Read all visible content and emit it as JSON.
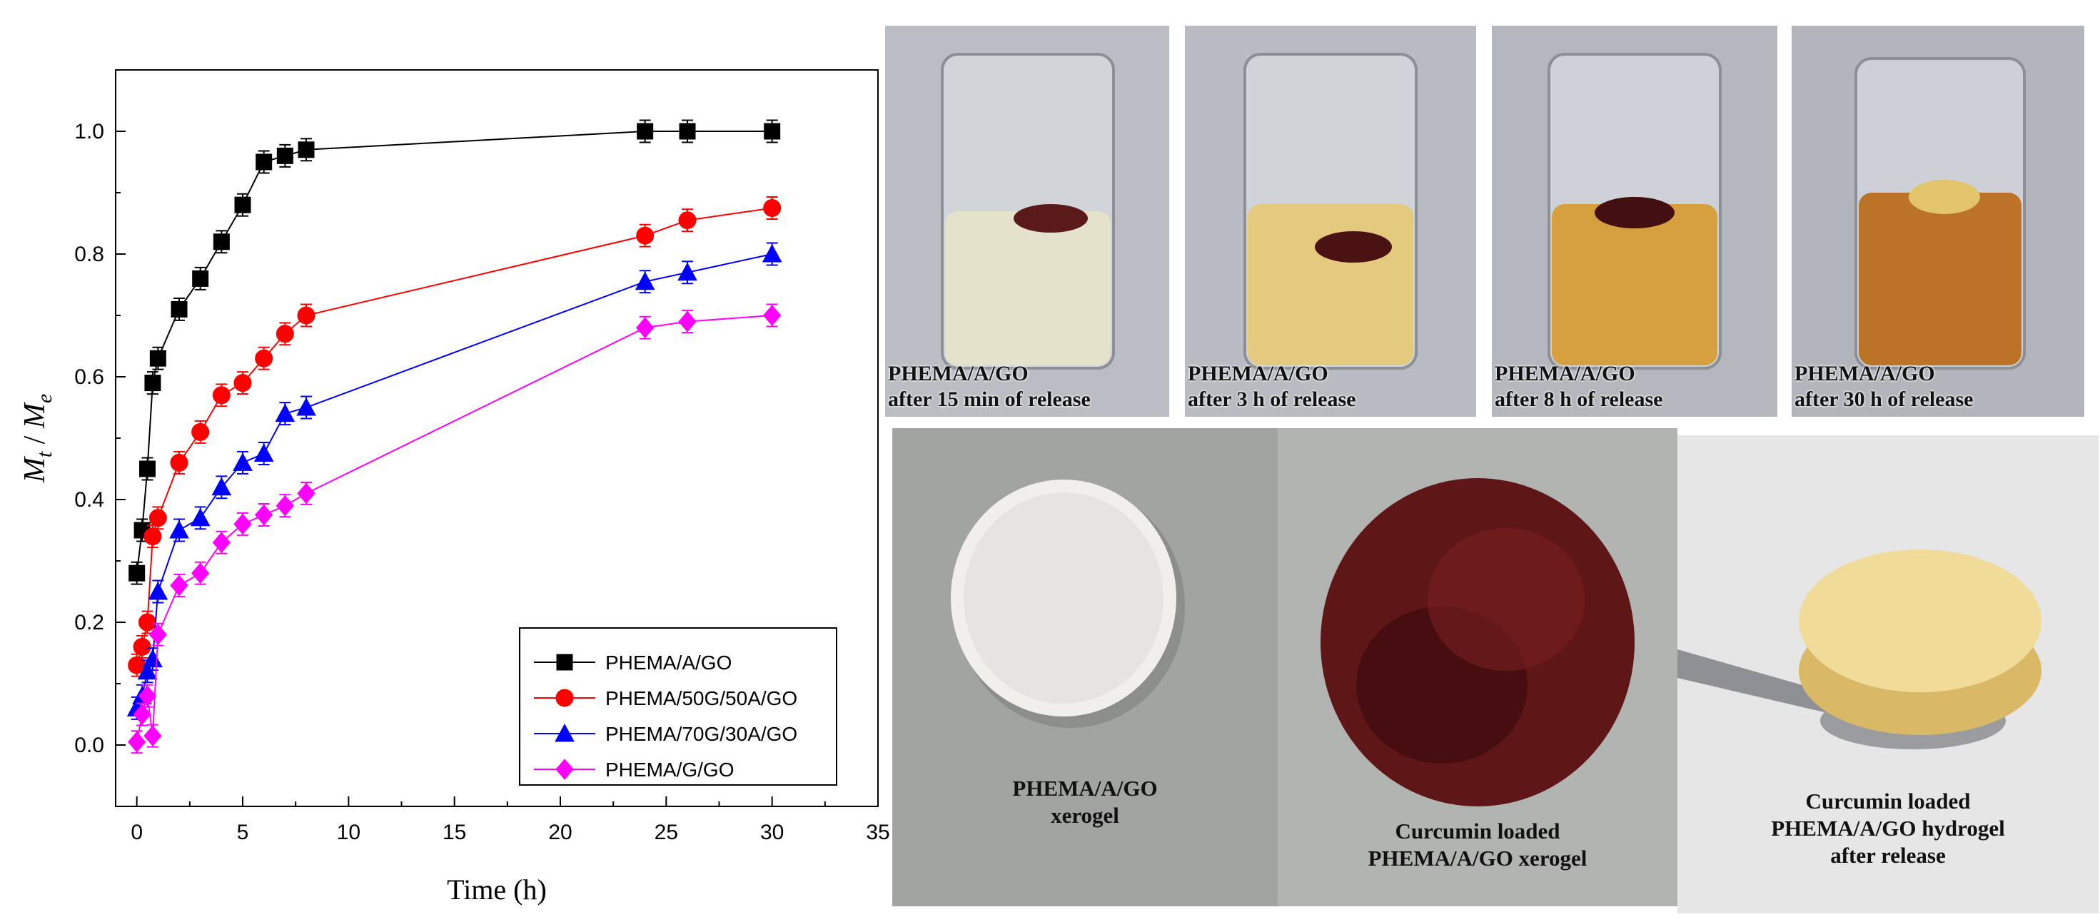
{
  "chart_data": {
    "type": "line",
    "xlabel": "Time (h)",
    "ylabel_main": "M",
    "ylabel_num_sub": "t",
    "ylabel_sep": " / ",
    "ylabel_den_sub": "e",
    "xlim": [
      -1,
      35
    ],
    "ylim": [
      -0.1,
      1.1
    ],
    "xticks": [
      0,
      5,
      10,
      15,
      20,
      25,
      30,
      35
    ],
    "yticks": [
      0.0,
      0.2,
      0.4,
      0.6,
      0.8,
      1.0
    ],
    "xtick_labels": [
      "0",
      "5",
      "10",
      "15",
      "20",
      "25",
      "30",
      "35"
    ],
    "ytick_labels": [
      "0.0",
      "0.2",
      "0.4",
      "0.6",
      "0.8",
      "1.0"
    ],
    "legend_position": "bottom-right",
    "series": [
      {
        "name": "PHEMA/A/GO",
        "color": "#000000",
        "marker": "square",
        "points": [
          [
            0,
            0.28
          ],
          [
            0.25,
            0.35
          ],
          [
            0.5,
            0.45
          ],
          [
            0.75,
            0.59
          ],
          [
            1,
            0.63
          ],
          [
            2,
            0.71
          ],
          [
            3,
            0.76
          ],
          [
            4,
            0.82
          ],
          [
            5,
            0.88
          ],
          [
            6,
            0.95
          ],
          [
            7,
            0.96
          ],
          [
            8,
            0.97
          ],
          [
            24,
            1.0
          ],
          [
            26,
            1.0
          ],
          [
            30,
            1.0
          ]
        ],
        "error": 0.018
      },
      {
        "name": "PHEMA/50G/50A/GO",
        "color": "#ff0000",
        "marker": "circle",
        "points": [
          [
            0,
            0.13
          ],
          [
            0.25,
            0.16
          ],
          [
            0.5,
            0.2
          ],
          [
            0.75,
            0.34
          ],
          [
            1,
            0.37
          ],
          [
            2,
            0.46
          ],
          [
            3,
            0.51
          ],
          [
            4,
            0.57
          ],
          [
            5,
            0.59
          ],
          [
            6,
            0.63
          ],
          [
            7,
            0.67
          ],
          [
            8,
            0.7
          ],
          [
            24,
            0.83
          ],
          [
            26,
            0.855
          ],
          [
            30,
            0.875
          ]
        ],
        "error": 0.018
      },
      {
        "name": "PHEMA/70G/30A/GO",
        "color": "#0000ff",
        "marker": "triangle",
        "points": [
          [
            0,
            0.06
          ],
          [
            0.25,
            0.08
          ],
          [
            0.5,
            0.12
          ],
          [
            0.75,
            0.14
          ],
          [
            1,
            0.25
          ],
          [
            2,
            0.35
          ],
          [
            3,
            0.37
          ],
          [
            4,
            0.42
          ],
          [
            5,
            0.46
          ],
          [
            6,
            0.475
          ],
          [
            7,
            0.54
          ],
          [
            8,
            0.55
          ],
          [
            24,
            0.755
          ],
          [
            26,
            0.77
          ],
          [
            30,
            0.8
          ]
        ],
        "error": 0.018
      },
      {
        "name": "PHEMA/G/GO",
        "color": "#ff00ff",
        "marker": "diamond",
        "points": [
          [
            0,
            0.005
          ],
          [
            0.25,
            0.05
          ],
          [
            0.5,
            0.08
          ],
          [
            0.75,
            0.015
          ],
          [
            1,
            0.18
          ],
          [
            2,
            0.26
          ],
          [
            3,
            0.28
          ],
          [
            4,
            0.33
          ],
          [
            5,
            0.36
          ],
          [
            6,
            0.375
          ],
          [
            7,
            0.39
          ],
          [
            8,
            0.41
          ],
          [
            24,
            0.68
          ],
          [
            26,
            0.69
          ],
          [
            30,
            0.7
          ]
        ],
        "error": 0.018
      }
    ]
  },
  "photos": {
    "beakers": [
      {
        "line1": "PHEMA/A/GO",
        "line2": "after 15 min of release",
        "liquid": "#e8e4c8",
        "sample": "#5a1a1a"
      },
      {
        "line1": "PHEMA/A/GO",
        "line2": "after 3 h of release",
        "liquid": "#e6c872",
        "sample": "#4a1212"
      },
      {
        "line1": "PHEMA/A/GO",
        "line2": "after 8 h of release",
        "liquid": "#d69a2c",
        "sample": "#421010"
      },
      {
        "line1": "PHEMA/A/GO",
        "line2": "after 30 h of release",
        "liquid": "#b86a18",
        "sample": "#e2c46a"
      }
    ],
    "samples": [
      {
        "line1": "PHEMA/A/GO",
        "line2": "xerogel",
        "line3": ""
      },
      {
        "line1": "Curcumin loaded",
        "line2": "PHEMA/A/GO xerogel",
        "line3": ""
      },
      {
        "line1": "Curcumin loaded",
        "line2": "PHEMA/A/GO hydrogel",
        "line3": "after release"
      }
    ]
  }
}
